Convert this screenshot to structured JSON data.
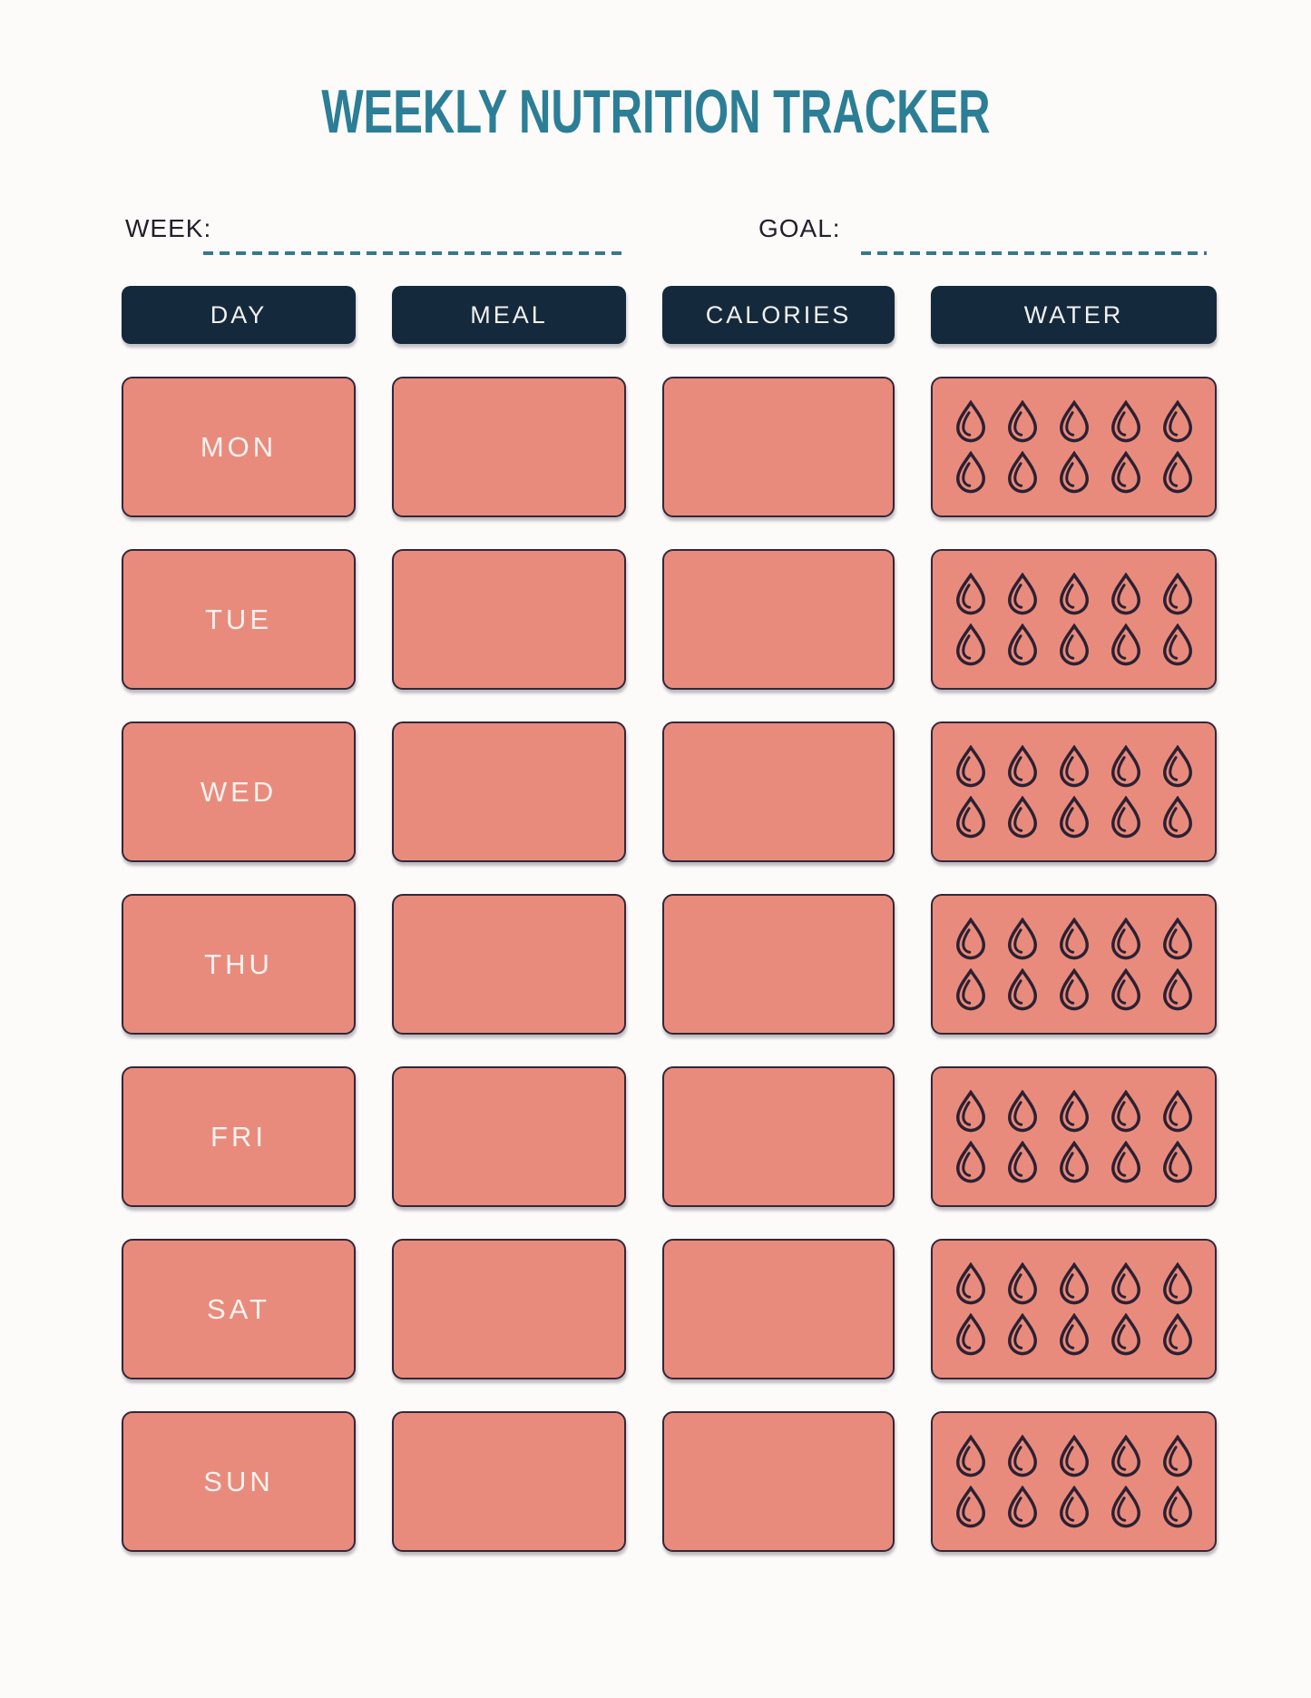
{
  "title": "WEEKLY NUTRITION TRACKER",
  "colors": {
    "title_teal": "#2b7e95",
    "dash_teal": "#35788c",
    "header_navy": "#15293c",
    "cell_coral": "#e98b7c",
    "droplet_outline": "#2b2133",
    "page_background": "#fcfbfa"
  },
  "fields": {
    "week_label": "WEEK:",
    "week_value": "",
    "goal_label": "GOAL:",
    "goal_value": ""
  },
  "table": {
    "headers": [
      "DAY",
      "MEAL",
      "CALORIES",
      "WATER"
    ],
    "days": [
      "MON",
      "TUE",
      "WED",
      "THU",
      "FRI",
      "SAT",
      "SUN"
    ],
    "meal_values": [
      "",
      "",
      "",
      "",
      "",
      "",
      ""
    ],
    "calories_values": [
      "",
      "",
      "",
      "",
      "",
      "",
      ""
    ],
    "water_drops_per_day": 10,
    "water_icon": "water-drop-icon"
  }
}
